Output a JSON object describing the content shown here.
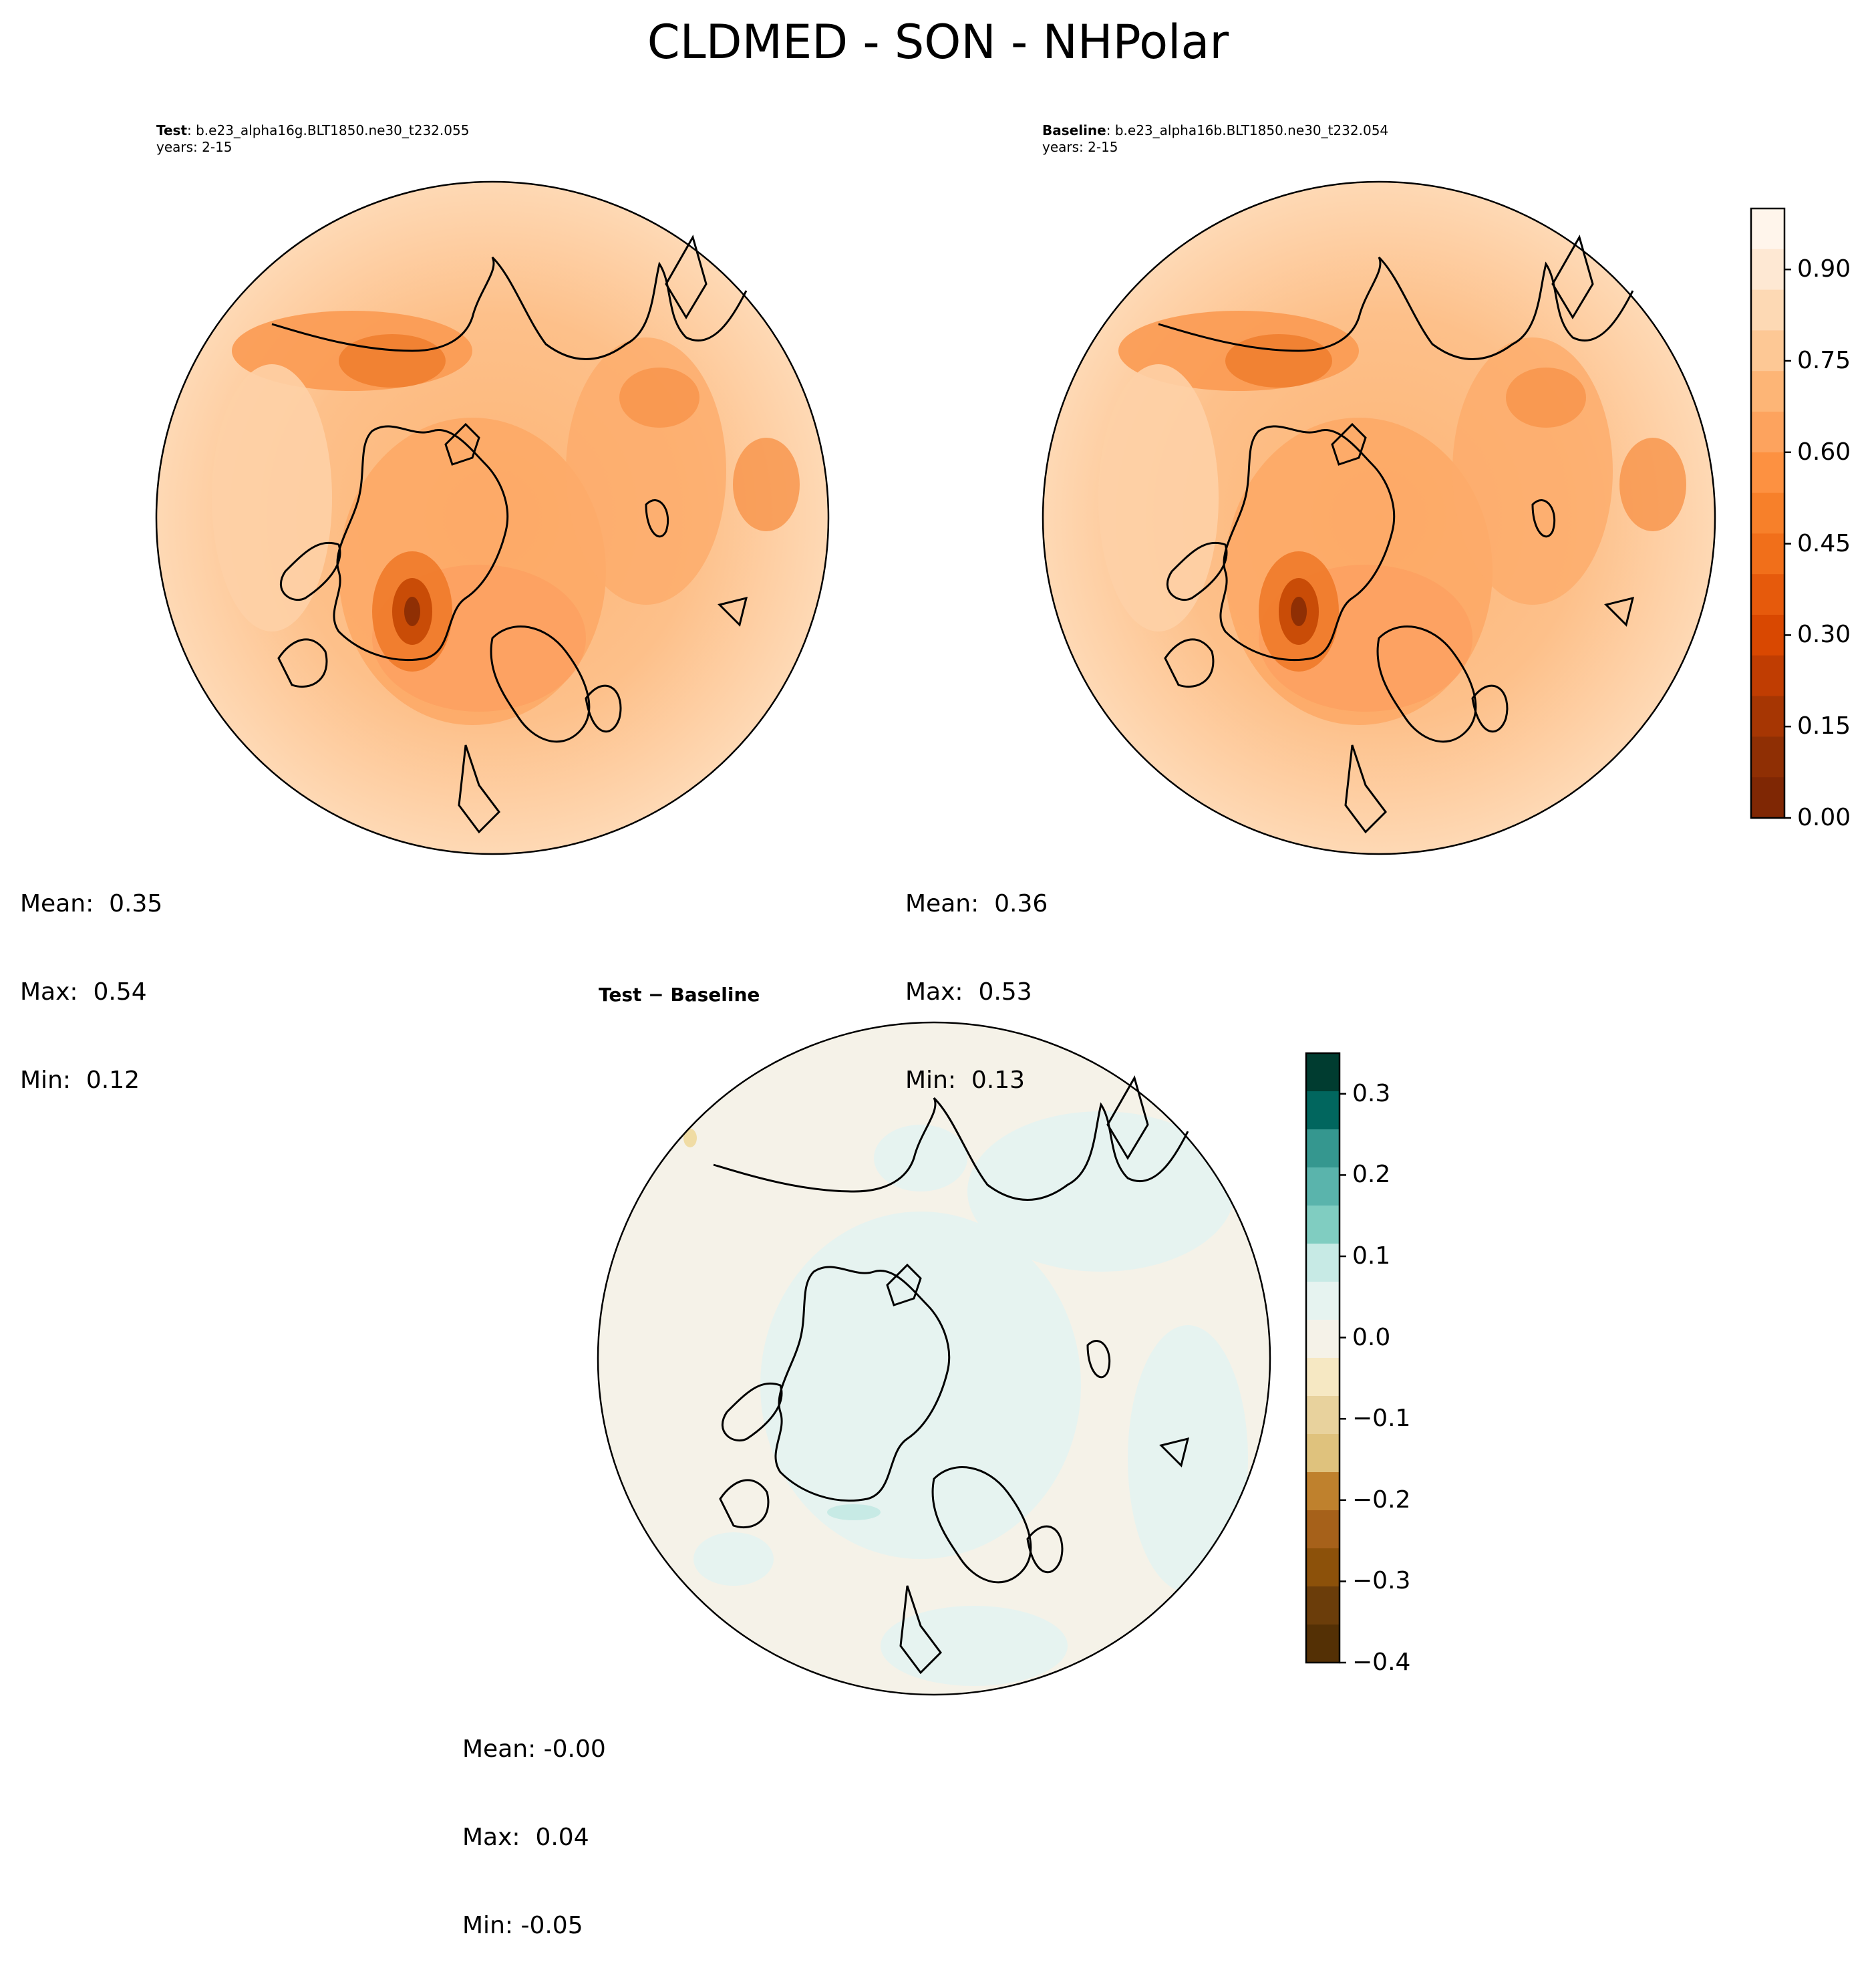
{
  "title": "CLDMED - SON - NHPolar",
  "panels": [
    {
      "id": "test",
      "label_bold": "Test",
      "label_rest": ": b.e23_alpha16g.BLT1850.ne30_t232.055",
      "years": "years: 2-15",
      "stats": {
        "mean": "Mean:  0.35",
        "max": "Max:  0.54",
        "min": "Min:  0.12"
      }
    },
    {
      "id": "baseline",
      "label_bold": "Baseline",
      "label_rest": ": b.e23_alpha16b.BLT1850.ne30_t232.054",
      "years": "years: 2-15",
      "stats": {
        "mean": "Mean:  0.36",
        "max": "Max:  0.53",
        "min": "Min:  0.13"
      }
    },
    {
      "id": "difference",
      "label_bold": "Test − Baseline",
      "stats": {
        "mean": "Mean: -0.00",
        "max": "Max:  0.04",
        "min": "Min: -0.05"
      }
    }
  ],
  "colorbars": {
    "main": {
      "ticks": [
        "0.00",
        "0.15",
        "0.30",
        "0.45",
        "0.60",
        "0.75",
        "0.90"
      ],
      "range": [
        0.0,
        1.0
      ],
      "colors": [
        "#fff5eb",
        "#fee8d3",
        "#fdd9b4",
        "#fdc895",
        "#fdb576",
        "#fda35e",
        "#fd9141",
        "#f7802a",
        "#f16f1a",
        "#e65a0c",
        "#d94801",
        "#c03d02",
        "#a63603",
        "#8f2f04",
        "#7f2704"
      ]
    },
    "difference": {
      "ticks": [
        "0.3",
        "0.2",
        "0.1",
        "0.0",
        "−0.1",
        "−0.2",
        "−0.3",
        "−0.4"
      ],
      "range": [
        -0.4,
        0.35
      ],
      "colors": [
        "#003c30",
        "#01665e",
        "#35978f",
        "#5ab4ac",
        "#80cdc1",
        "#c7eae5",
        "#e6f3f0",
        "#f5f2e8",
        "#f6e8c3",
        "#e8d29d",
        "#dfc27d",
        "#bf812d",
        "#a6611a",
        "#8c510a",
        "#6b3d0a",
        "#543005"
      ]
    }
  }
}
